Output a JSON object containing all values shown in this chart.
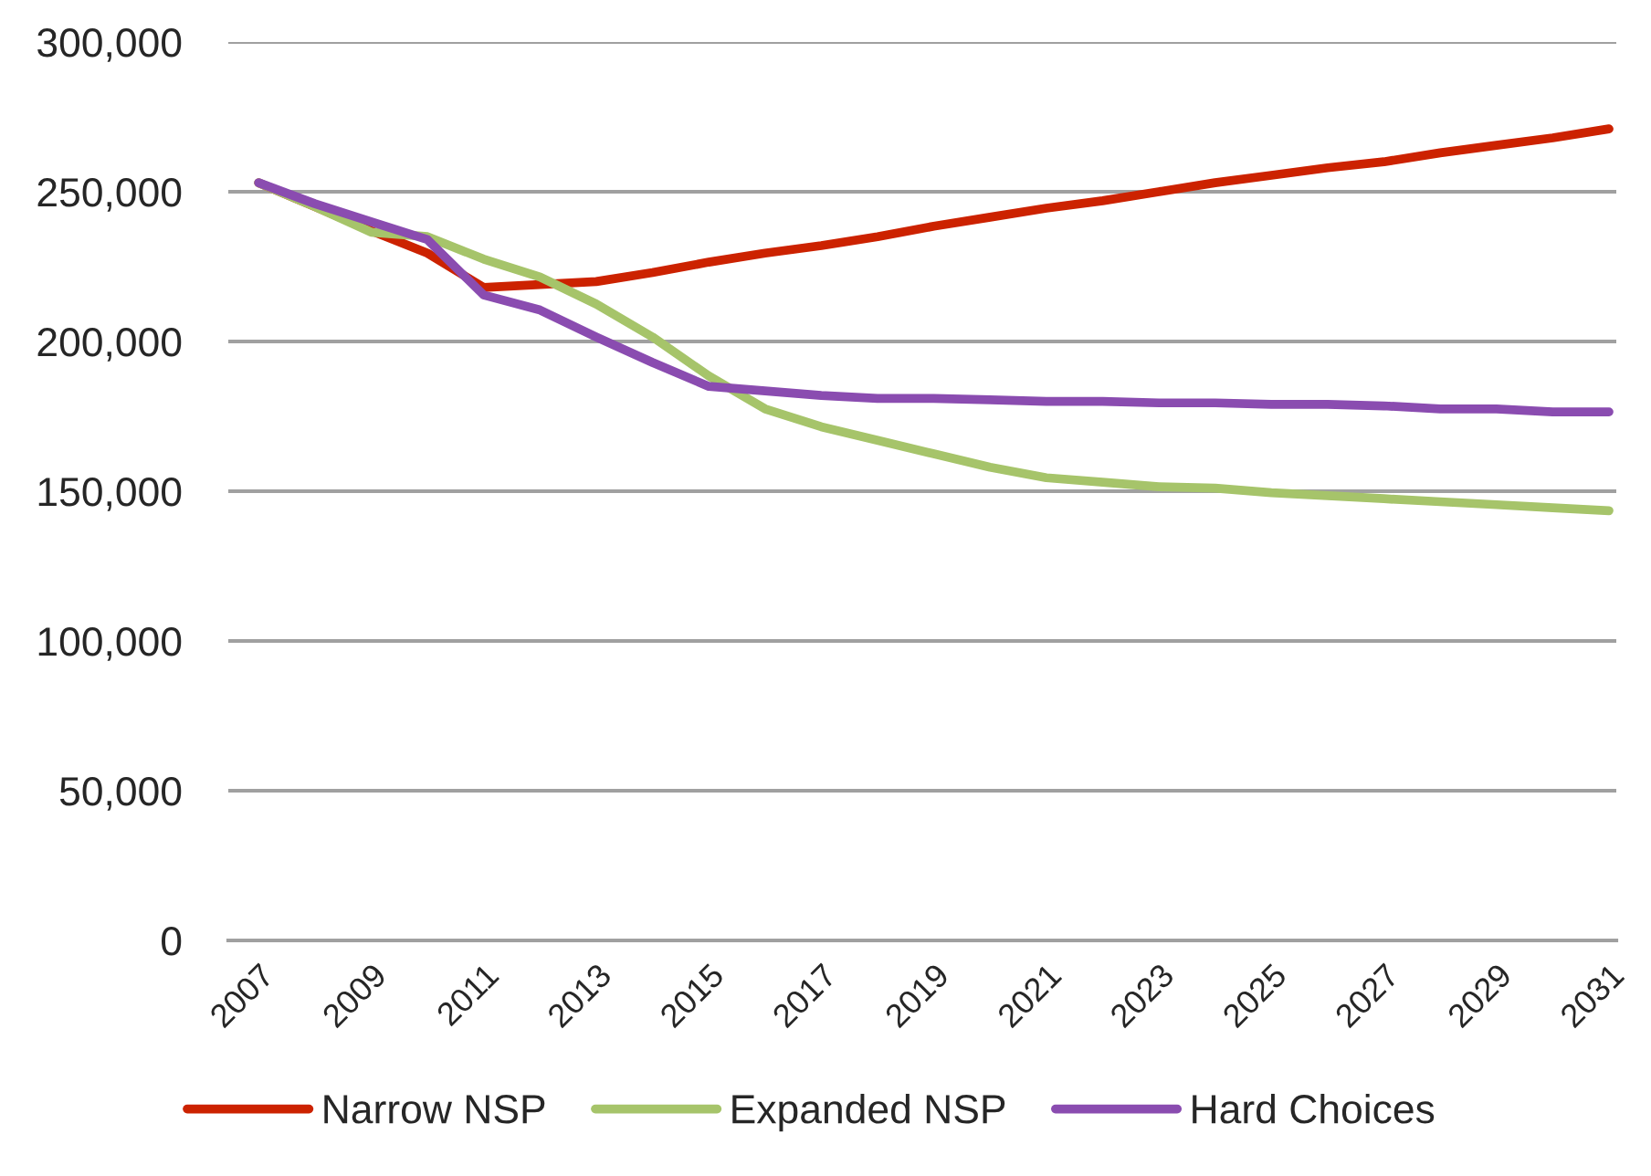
{
  "chart_data": {
    "type": "line",
    "categories": [
      "2007",
      null,
      "2009",
      null,
      "2011",
      null,
      "2013",
      null,
      "2015",
      null,
      "2017",
      null,
      "2019",
      null,
      "2021",
      null,
      "2023",
      null,
      "2025",
      null,
      "2027",
      null,
      "2029",
      null,
      "2031"
    ],
    "series": [
      {
        "name": "Narrow NSP",
        "color": "#cc2200",
        "values": [
          253000,
          245000,
          237000,
          229500,
          218000,
          219000,
          220000,
          223000,
          226500,
          229500,
          232000,
          235000,
          238500,
          241500,
          244500,
          247000,
          250000,
          253000,
          255500,
          258000,
          260000,
          263000,
          265500,
          268000,
          271000
        ]
      },
      {
        "name": "Expanded NSP",
        "color": "#a6c46a",
        "values": [
          253000,
          245000,
          236500,
          235000,
          227500,
          221500,
          212500,
          201500,
          188500,
          177500,
          171500,
          167000,
          162500,
          158000,
          154500,
          153000,
          151500,
          151000,
          149500,
          148500,
          147500,
          146500,
          145500,
          144500,
          143500
        ]
      },
      {
        "name": "Hard Choices",
        "color": "#8a4cb0",
        "values": [
          253000,
          246000,
          240000,
          234000,
          215500,
          210500,
          201500,
          193000,
          185000,
          183500,
          182000,
          181000,
          181000,
          180500,
          180000,
          180000,
          179500,
          179500,
          179000,
          179000,
          178500,
          177500,
          177500,
          176500,
          176500
        ]
      }
    ],
    "ylim": [
      0,
      300000
    ],
    "yticks": [
      {
        "value": 0,
        "label": "0"
      },
      {
        "value": 50000,
        "label": "50,000"
      },
      {
        "value": 100000,
        "label": "100,000"
      },
      {
        "value": 150000,
        "label": "150,000"
      },
      {
        "value": 200000,
        "label": "200,000"
      },
      {
        "value": 250000,
        "label": "250,000"
      },
      {
        "value": 300000,
        "label": "300,000"
      }
    ],
    "grid": "y",
    "legend": "bottom",
    "marker": "none",
    "line_style": "solid"
  }
}
